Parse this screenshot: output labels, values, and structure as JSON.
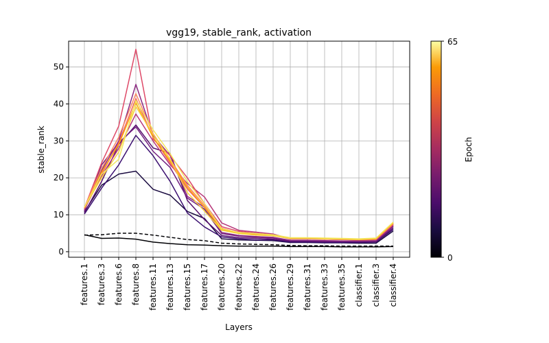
{
  "chart_data": {
    "type": "line",
    "title": "vgg19, stable_rank, activation",
    "xlabel": "Layers",
    "ylabel": "stable_rank",
    "ylim": [
      -1.5,
      57
    ],
    "yticks": [
      0,
      10,
      20,
      30,
      40,
      50
    ],
    "grid": true,
    "categories": [
      "features.1",
      "features.3",
      "features.6",
      "features.8",
      "features.11",
      "features.13",
      "features.15",
      "features.17",
      "features.20",
      "features.22",
      "features.24",
      "features.26",
      "features.29",
      "features.31",
      "features.33",
      "features.35",
      "classifier.1",
      "classifier.3",
      "classifier.4"
    ],
    "colorbar": {
      "label": "Epoch",
      "min_label": "0",
      "max_label": "65",
      "min": 0,
      "max": 65,
      "colormap": "inferno"
    },
    "series": [
      {
        "epoch": 0,
        "color": "#000004",
        "style": "solid",
        "values": [
          4.6,
          3.6,
          3.7,
          3.4,
          2.6,
          2.2,
          1.9,
          1.8,
          1.6,
          1.5,
          1.5,
          1.5,
          1.4,
          1.4,
          1.4,
          1.3,
          1.3,
          1.3,
          1.4
        ]
      },
      {
        "epoch": 0,
        "color": "#000004",
        "style": "dashed",
        "values": [
          4.5,
          4.6,
          5.0,
          5.0,
          4.5,
          3.9,
          3.3,
          3.0,
          2.3,
          2.1,
          2.0,
          1.9,
          1.7,
          1.6,
          1.6,
          1.5,
          1.5,
          1.5,
          1.5
        ]
      },
      {
        "epoch": 5,
        "color": "#1b0c41",
        "style": "solid",
        "values": [
          10.8,
          18.0,
          21.0,
          21.8,
          16.9,
          15.3,
          10.9,
          9.0,
          3.5,
          3.2,
          3.1,
          3.0,
          2.5,
          2.5,
          2.4,
          2.4,
          2.3,
          2.3,
          5.6
        ]
      },
      {
        "epoch": 10,
        "color": "#3b0f70",
        "style": "solid",
        "values": [
          10.2,
          17.2,
          23.5,
          31.5,
          26.0,
          19.0,
          10.5,
          6.7,
          4.0,
          3.5,
          3.2,
          3.2,
          2.6,
          2.6,
          2.5,
          2.5,
          2.5,
          2.6,
          6.0
        ]
      },
      {
        "epoch": 15,
        "color": "#57106e",
        "style": "solid",
        "values": [
          10.5,
          19.0,
          29.0,
          34.3,
          28.1,
          26.6,
          13.9,
          8.7,
          4.4,
          3.8,
          3.6,
          3.4,
          2.8,
          2.8,
          2.7,
          2.7,
          2.6,
          2.7,
          6.4
        ]
      },
      {
        "epoch": 20,
        "color": "#721f81",
        "style": "solid",
        "values": [
          11.0,
          23.5,
          29.5,
          33.8,
          27.2,
          22.8,
          14.5,
          11.5,
          4.9,
          4.2,
          3.9,
          3.7,
          3.0,
          3.0,
          2.9,
          2.8,
          2.8,
          2.9,
          6.8
        ]
      },
      {
        "epoch": 25,
        "color": "#8c2981",
        "style": "solid",
        "values": [
          11.2,
          22.0,
          30.0,
          45.3,
          31.5,
          26.0,
          15.0,
          12.0,
          5.2,
          4.4,
          4.1,
          3.9,
          3.1,
          3.1,
          3.0,
          2.9,
          2.9,
          3.0,
          7.0
        ]
      },
      {
        "epoch": 30,
        "color": "#b73779",
        "style": "solid",
        "values": [
          11.5,
          20.5,
          28.0,
          37.3,
          30.0,
          23.5,
          18.5,
          14.8,
          7.8,
          5.8,
          5.3,
          4.8,
          3.5,
          3.5,
          3.4,
          3.3,
          3.2,
          3.3,
          7.3
        ]
      },
      {
        "epoch": 35,
        "color": "#de4968",
        "style": "solid",
        "values": [
          11.8,
          24.0,
          34.0,
          54.8,
          30.5,
          26.0,
          20.0,
          13.0,
          6.8,
          5.5,
          5.0,
          4.6,
          3.7,
          3.6,
          3.5,
          3.4,
          3.3,
          3.4,
          7.5
        ]
      },
      {
        "epoch": 40,
        "color": "#f1605d",
        "style": "solid",
        "values": [
          11.6,
          21.0,
          29.5,
          41.5,
          31.0,
          24.0,
          17.0,
          12.0,
          6.2,
          5.0,
          4.7,
          4.4,
          3.5,
          3.5,
          3.4,
          3.3,
          3.2,
          3.3,
          7.4
        ]
      },
      {
        "epoch": 45,
        "color": "#fb8861",
        "style": "solid",
        "values": [
          12.0,
          22.5,
          31.0,
          42.8,
          32.0,
          25.0,
          18.0,
          12.5,
          6.4,
          5.1,
          4.8,
          4.5,
          3.6,
          3.6,
          3.5,
          3.4,
          3.3,
          3.4,
          7.6
        ]
      },
      {
        "epoch": 50,
        "color": "#fca50a",
        "style": "solid",
        "values": [
          11.9,
          21.5,
          29.0,
          40.3,
          31.0,
          24.5,
          17.5,
          12.0,
          6.0,
          5.0,
          4.6,
          4.4,
          3.6,
          3.6,
          3.5,
          3.4,
          3.3,
          3.5,
          7.8
        ]
      },
      {
        "epoch": 55,
        "color": "#f7d13d",
        "style": "solid",
        "values": [
          12.0,
          20.0,
          27.0,
          39.3,
          31.8,
          25.0,
          16.0,
          11.0,
          5.8,
          4.9,
          4.5,
          4.3,
          3.6,
          3.6,
          3.5,
          3.4,
          3.3,
          3.6,
          7.9
        ]
      },
      {
        "epoch": 65,
        "color": "#f3e55d",
        "style": "solid",
        "values": [
          12.0,
          21.0,
          25.0,
          41.0,
          33.0,
          26.5,
          19.0,
          13.0,
          6.2,
          5.2,
          4.9,
          4.6,
          3.8,
          3.8,
          3.7,
          3.6,
          3.5,
          3.7,
          8.0
        ]
      }
    ]
  }
}
